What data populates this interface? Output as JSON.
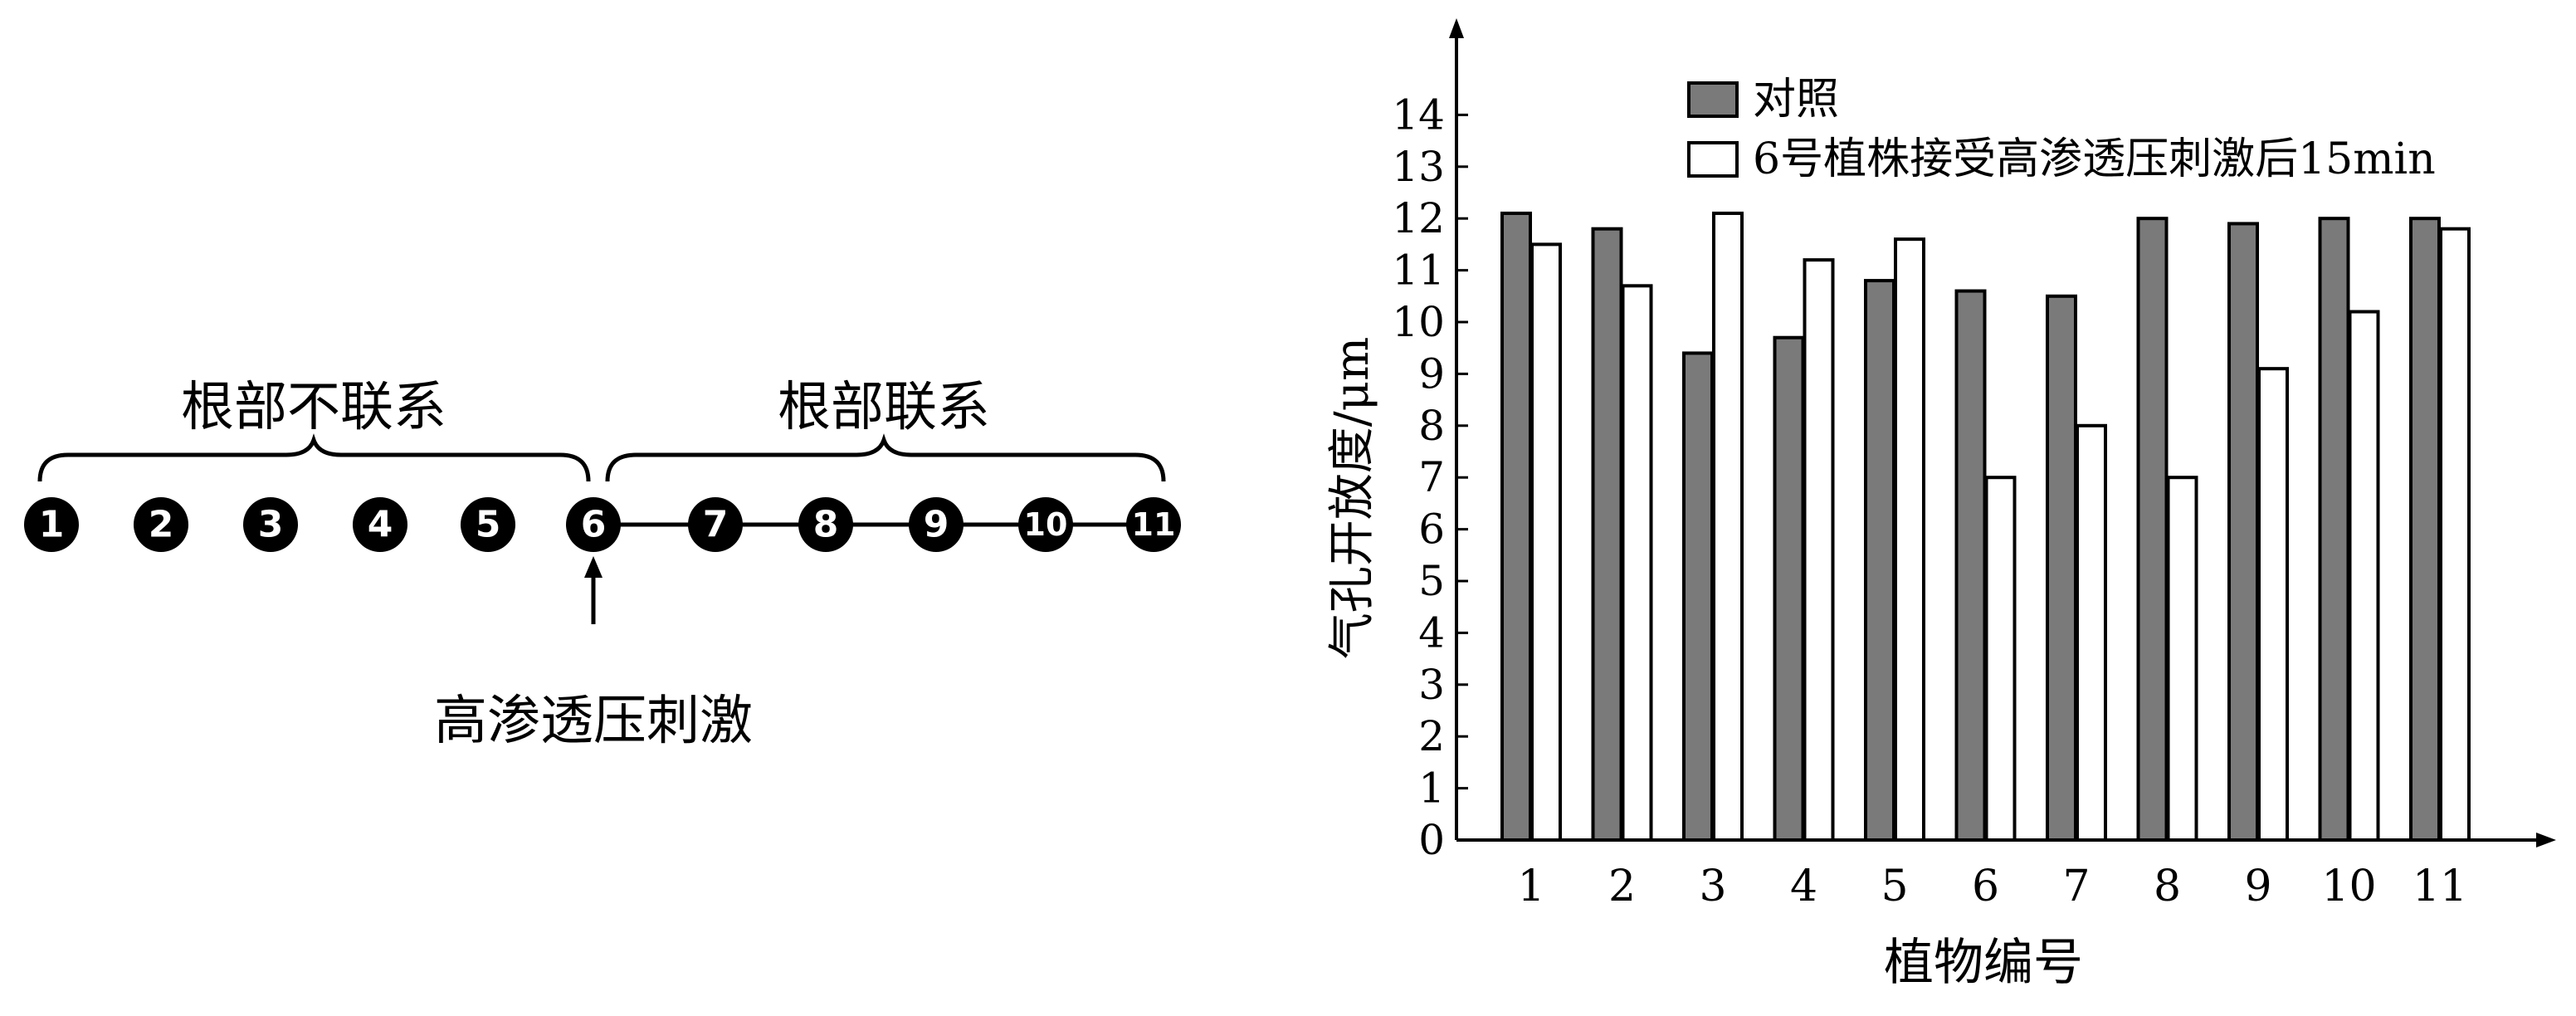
{
  "diagram": {
    "group_unconnected_label": "根部不联系",
    "group_connected_label": "根部联系",
    "stimulus_label": "高渗透压刺激",
    "nodes": [
      "1",
      "2",
      "3",
      "4",
      "5",
      "6",
      "7",
      "8",
      "9",
      "10",
      "11"
    ]
  },
  "chart_data": {
    "type": "bar",
    "xlabel": "植物编号",
    "ylabel": "气孔开放度/μm",
    "ylim": [
      0,
      14
    ],
    "yticks": [
      0,
      1,
      2,
      3,
      4,
      5,
      6,
      7,
      8,
      9,
      10,
      11,
      12,
      13,
      14
    ],
    "categories": [
      "1",
      "2",
      "3",
      "4",
      "5",
      "6",
      "7",
      "8",
      "9",
      "10",
      "11"
    ],
    "series": [
      {
        "name": "对照",
        "color": "#7a7a7a",
        "values": [
          12.1,
          11.8,
          9.4,
          9.7,
          10.8,
          10.6,
          10.5,
          12.0,
          11.9,
          12.0,
          12.0
        ]
      },
      {
        "name": "6号植株接受高渗透压刺激后15min",
        "color": "#ffffff",
        "values": [
          11.5,
          10.7,
          12.1,
          11.2,
          11.6,
          7.0,
          8.0,
          7.0,
          9.1,
          10.2,
          11.8
        ]
      }
    ],
    "legend_position": "top-right"
  }
}
